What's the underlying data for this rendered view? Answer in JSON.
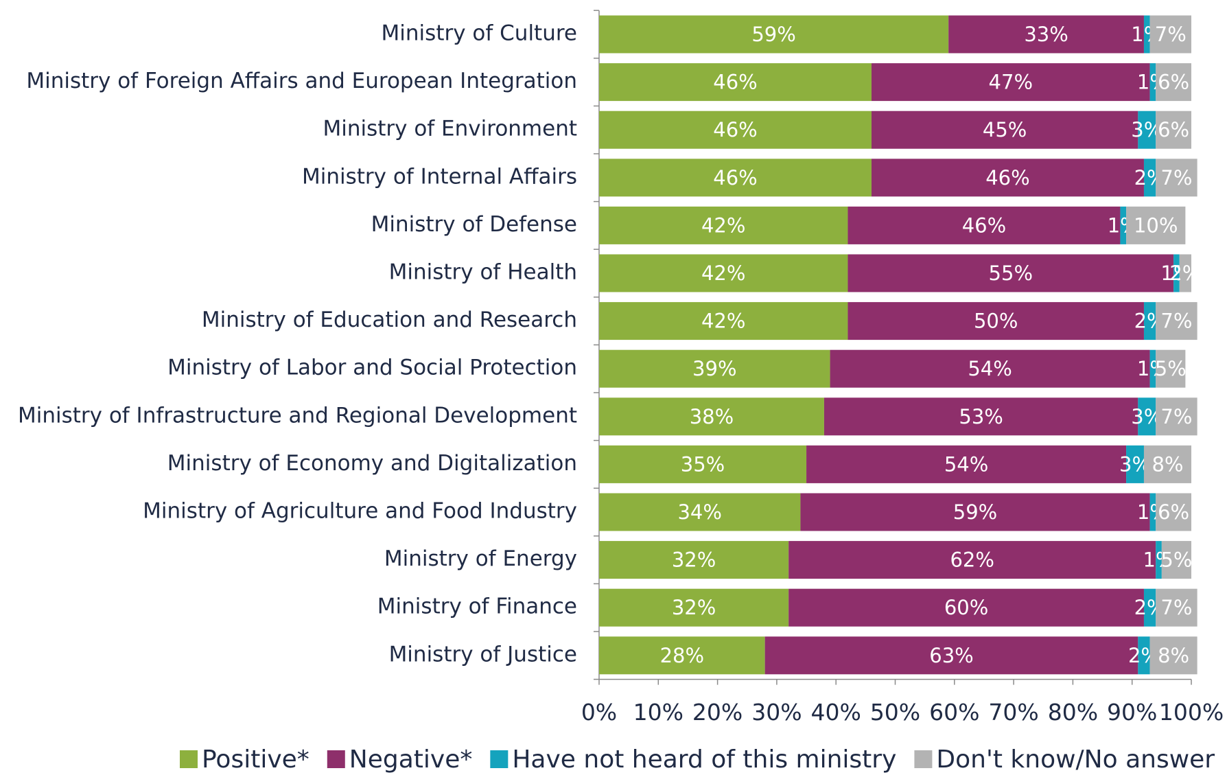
{
  "chart_data": {
    "type": "stacked-bar-horizontal",
    "categories": [
      "Ministry of Culture",
      "Ministry of Foreign Affairs and European Integration",
      "Ministry of Environment",
      "Ministry of Internal Affairs",
      "Ministry of Defense",
      "Ministry of Health",
      "Ministry of Education and Research",
      "Ministry of Labor and Social Protection",
      "Ministry of Infrastructure and Regional Development",
      "Ministry of Economy and Digitalization",
      "Ministry of Agriculture and Food Industry",
      "Ministry of Energy",
      "Ministry of Finance",
      "Ministry of Justice"
    ],
    "series": [
      {
        "name": "Positive*",
        "color": "#8db03e",
        "values": [
          59,
          46,
          46,
          46,
          42,
          42,
          42,
          39,
          38,
          35,
          34,
          32,
          32,
          28
        ],
        "value_labels": [
          "59%",
          "46%",
          "46%",
          "46%",
          "42%",
          "42%",
          "42%",
          "39%",
          "38%",
          "35%",
          "34%",
          "32%",
          "32%",
          "28%"
        ]
      },
      {
        "name": "Negative*",
        "color": "#8e2f6b",
        "values": [
          33,
          47,
          45,
          46,
          46,
          55,
          50,
          54,
          53,
          54,
          59,
          62,
          60,
          63
        ],
        "value_labels": [
          "33%",
          "47%",
          "45%",
          "46%",
          "46%",
          "55%",
          "50%",
          "54%",
          "53%",
          "54%",
          "59%",
          "62%",
          "60%",
          "63%"
        ]
      },
      {
        "name": "Have not heard of this ministry",
        "color": "#14a3bd",
        "values": [
          1,
          1,
          3,
          2,
          1,
          1,
          2,
          1,
          3,
          3,
          1,
          1,
          2,
          2
        ],
        "value_labels": [
          "1%",
          "1%",
          "3%",
          "2%",
          "1%",
          "1%",
          "2%",
          "1%",
          "3%",
          "3%",
          "1%",
          "1%",
          "2%",
          "2%"
        ]
      },
      {
        "name": "Don't know/No answer",
        "color": "#b3b3b3",
        "values": [
          7,
          6,
          6,
          7,
          10,
          2,
          7,
          5,
          7,
          8,
          6,
          5,
          7,
          8
        ],
        "value_labels": [
          "7%",
          "6%",
          "6%",
          "7%",
          "10%",
          "2%",
          "7%",
          "5%",
          "7%",
          "8%",
          "6%",
          "5%",
          "7%",
          "8%"
        ]
      }
    ],
    "xlim": [
      0,
      100
    ],
    "xticks": [
      {
        "value": 0,
        "label": "0%"
      },
      {
        "value": 10,
        "label": "10%"
      },
      {
        "value": 20,
        "label": "20%"
      },
      {
        "value": 30,
        "label": "30%"
      },
      {
        "value": 40,
        "label": "40%"
      },
      {
        "value": 50,
        "label": "50%"
      },
      {
        "value": 60,
        "label": "60%"
      },
      {
        "value": 70,
        "label": "70%"
      },
      {
        "value": 80,
        "label": "80%"
      },
      {
        "value": 90,
        "label": "90%"
      },
      {
        "value": 100,
        "label": "100%"
      }
    ],
    "legend": "bottom"
  }
}
